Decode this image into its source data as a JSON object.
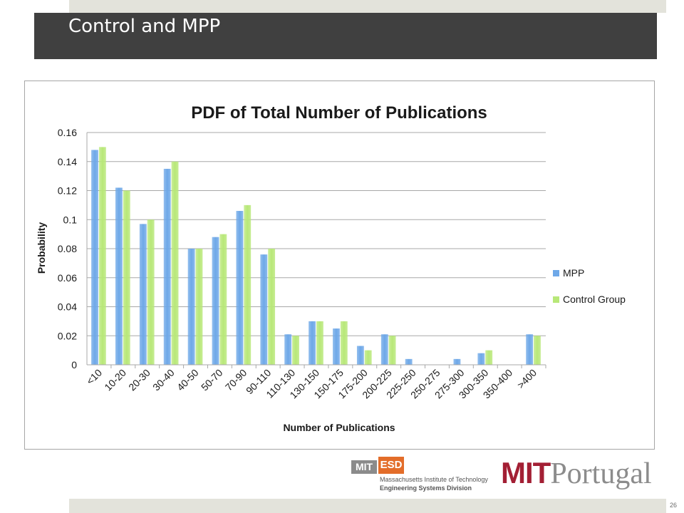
{
  "slide": {
    "title": "Control and MPP",
    "page_number": "26"
  },
  "logos": {
    "mit_esd": {
      "mit": "MIT",
      "esd": "ESD",
      "line1": "Massachusetts Institute of Technology",
      "line2": "Engineering Systems Division"
    },
    "mit_portugal": {
      "mit": "MIT",
      "portugal": "Portugal"
    }
  },
  "colors": {
    "mpp": "#6ea8e8",
    "control": "#b8e878",
    "title_bar": "#404040",
    "accent_red": "#a31f34",
    "accent_orange": "#e36d2a"
  },
  "chart_data": {
    "type": "bar",
    "title": "PDF of Total Number of Publications",
    "xlabel": "Number of Publications",
    "ylabel": "Probability",
    "ylim": [
      0,
      0.16
    ],
    "yticks": [
      "0",
      "0.02",
      "0.04",
      "0.06",
      "0.08",
      "0.1",
      "0.12",
      "0.14",
      "0.16"
    ],
    "grid": true,
    "legend_position": "right",
    "categories": [
      "<10",
      "10-20",
      "20-30",
      "30-40",
      "40-50",
      "50-70",
      "70-90",
      "90-110",
      "110-130",
      "130-150",
      "150-175",
      "175-200",
      "200-225",
      "225-250",
      "250-275",
      "275-300",
      "300-350",
      "350-400",
      ">400"
    ],
    "series": [
      {
        "name": "MPP",
        "values": [
          0.148,
          0.122,
          0.097,
          0.135,
          0.08,
          0.088,
          0.106,
          0.076,
          0.021,
          0.03,
          0.025,
          0.013,
          0.021,
          0.004,
          0,
          0.004,
          0.008,
          0,
          0.021
        ]
      },
      {
        "name": "Control Group",
        "values": [
          0.15,
          0.12,
          0.1,
          0.14,
          0.08,
          0.09,
          0.11,
          0.08,
          0.02,
          0.03,
          0.03,
          0.01,
          0.02,
          0,
          0,
          0,
          0.01,
          0,
          0.02
        ]
      }
    ]
  }
}
